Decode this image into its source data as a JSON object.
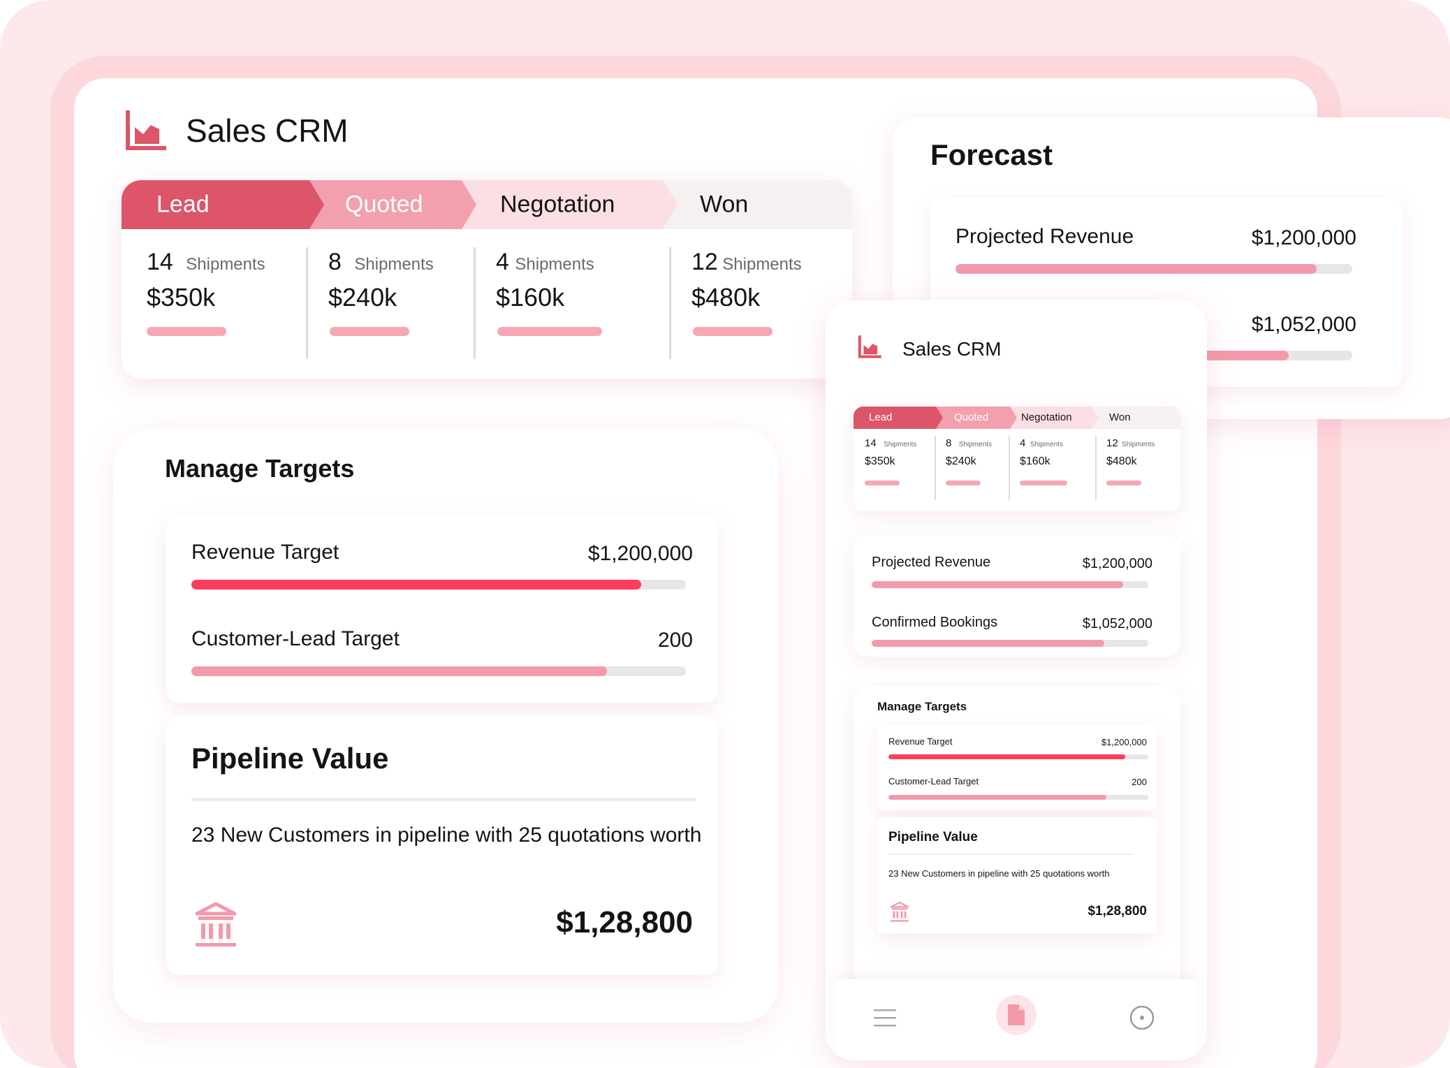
{
  "app": {
    "title": "Sales CRM"
  },
  "pipeline": {
    "stages": [
      {
        "name": "Lead",
        "count": "14",
        "unit": "Shipments",
        "amount": "$350k"
      },
      {
        "name": "Quoted",
        "count": "8",
        "unit": "Shipments",
        "amount": "$240k"
      },
      {
        "name": "Negotation",
        "count": "4",
        "unit": "Shipments",
        "amount": "$160k"
      },
      {
        "name": "Won",
        "count": "12",
        "unit": "Shipments",
        "amount": "$480k"
      }
    ],
    "active_stage": "Lead"
  },
  "forecast": {
    "title": "Forecast",
    "items": [
      {
        "label": "Projected Revenue",
        "value": "$1,200,000",
        "progress": 0.91
      },
      {
        "label": "Confirmed Bookings",
        "value": "$1,052,000",
        "progress": 0.84
      }
    ]
  },
  "targets": {
    "title": "Manage Targets",
    "items": [
      {
        "label": "Revenue Target",
        "value": "$1,200,000",
        "progress": 0.91
      },
      {
        "label": "Customer-Lead Target",
        "value": "200",
        "progress": 0.84
      }
    ]
  },
  "pipeline_value": {
    "title": "Pipeline Value",
    "description": "23 New Customers in pipeline with 25 quotations worth",
    "amount": "$1,28,800"
  },
  "bottom_nav": {
    "items": [
      "menu-icon",
      "document-icon",
      "target-icon"
    ],
    "active": "document-icon"
  },
  "colors": {
    "lead": "#dc5569",
    "quoted": "#f2a0ae",
    "negotiation": "#fbdfe3",
    "won": "#f7f0f1",
    "revenue_bar": "#fc3d5e",
    "pink_bar": "#f29aab",
    "background": "#fde8ea"
  }
}
